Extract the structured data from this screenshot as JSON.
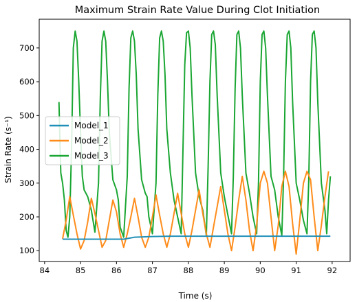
{
  "chart_data": {
    "type": "line",
    "title": "Maximum Strain Rate Value During Clot Initiation",
    "xlabel": "Time (s)",
    "ylabel": "Strain Rate (s⁻¹)",
    "xlim": [
      83.85,
      92.5
    ],
    "ylim": [
      68,
      785
    ],
    "xticks": [
      84,
      85,
      86,
      87,
      88,
      89,
      90,
      91,
      92
    ],
    "yticks": [
      100,
      200,
      300,
      400,
      500,
      600,
      700
    ],
    "grid": false,
    "legend": {
      "placement": "center-left"
    },
    "series": [
      {
        "name": "Model_1",
        "color": "#1f8fb8",
        "x": [
          84.5,
          85.0,
          85.5,
          86.0,
          86.2,
          86.5,
          87.0,
          87.5,
          88.0,
          88.5,
          89.0,
          89.5,
          90.0,
          90.5,
          91.0,
          91.5,
          91.95
        ],
        "y": [
          134,
          134,
          134,
          134,
          134,
          140,
          142,
          143,
          143,
          143,
          143,
          143,
          143,
          143,
          143,
          143,
          143
        ]
      },
      {
        "name": "Model_2",
        "color": "#ff8c1a",
        "x": [
          84.5,
          84.6,
          84.7,
          84.8,
          84.9,
          85.0,
          85.1,
          85.2,
          85.3,
          85.4,
          85.5,
          85.6,
          85.7,
          85.8,
          85.9,
          86.0,
          86.1,
          86.2,
          86.3,
          86.4,
          86.5,
          86.6,
          86.7,
          86.8,
          86.9,
          87.0,
          87.1,
          87.2,
          87.3,
          87.4,
          87.5,
          87.6,
          87.7,
          87.8,
          87.9,
          88.0,
          88.1,
          88.2,
          88.3,
          88.4,
          88.5,
          88.6,
          88.7,
          88.8,
          88.9,
          89.0,
          89.1,
          89.2,
          89.3,
          89.4,
          89.5,
          89.6,
          89.7,
          89.8,
          89.9,
          90.0,
          90.1,
          90.2,
          90.3,
          90.4,
          90.5,
          90.6,
          90.7,
          90.8,
          90.9,
          91.0,
          91.1,
          91.2,
          91.3,
          91.4,
          91.5,
          91.6,
          91.7,
          91.8,
          91.9
        ],
        "y": [
          135,
          190,
          260,
          205,
          150,
          105,
          130,
          185,
          255,
          210,
          160,
          110,
          130,
          190,
          250,
          215,
          150,
          110,
          150,
          200,
          255,
          200,
          140,
          110,
          140,
          200,
          265,
          205,
          150,
          110,
          150,
          210,
          270,
          210,
          150,
          110,
          160,
          220,
          280,
          210,
          150,
          110,
          170,
          230,
          290,
          220,
          150,
          100,
          170,
          250,
          320,
          250,
          160,
          100,
          175,
          300,
          335,
          300,
          200,
          100,
          175,
          290,
          335,
          290,
          180,
          90,
          190,
          300,
          335,
          310,
          200,
          100,
          175,
          260,
          335
        ]
      },
      {
        "name": "Model_3",
        "color": "#1aa632",
        "x": [
          84.4,
          84.45,
          84.5,
          84.55,
          84.6,
          84.65,
          84.7,
          84.75,
          84.8,
          84.85,
          84.9,
          84.95,
          85.0,
          85.05,
          85.1,
          85.2,
          85.3,
          85.4,
          85.5,
          85.55,
          85.6,
          85.65,
          85.7,
          85.75,
          85.8,
          85.9,
          86.0,
          86.05,
          86.1,
          86.2,
          86.3,
          86.35,
          86.4,
          86.45,
          86.5,
          86.55,
          86.6,
          86.7,
          86.8,
          86.85,
          86.9,
          87.0,
          87.1,
          87.15,
          87.2,
          87.25,
          87.3,
          87.35,
          87.4,
          87.5,
          87.6,
          87.7,
          87.8,
          87.85,
          87.9,
          87.95,
          88.0,
          88.05,
          88.1,
          88.2,
          88.3,
          88.4,
          88.5,
          88.55,
          88.6,
          88.65,
          88.7,
          88.75,
          88.8,
          88.9,
          89.0,
          89.1,
          89.2,
          89.25,
          89.3,
          89.35,
          89.4,
          89.45,
          89.5,
          89.6,
          89.7,
          89.8,
          89.9,
          89.95,
          90.0,
          90.05,
          90.1,
          90.15,
          90.2,
          90.3,
          90.4,
          90.5,
          90.6,
          90.65,
          90.7,
          90.75,
          90.8,
          90.85,
          90.9,
          91.0,
          91.1,
          91.2,
          91.3,
          91.35,
          91.4,
          91.45,
          91.5,
          91.55,
          91.6,
          91.7,
          91.8,
          91.85,
          91.9,
          91.95
        ],
        "y": [
          540,
          330,
          300,
          250,
          160,
          140,
          200,
          400,
          700,
          750,
          720,
          600,
          450,
          320,
          280,
          260,
          220,
          155,
          300,
          550,
          720,
          750,
          720,
          600,
          450,
          310,
          280,
          250,
          170,
          140,
          320,
          580,
          730,
          750,
          720,
          620,
          460,
          310,
          270,
          260,
          200,
          150,
          300,
          560,
          730,
          750,
          720,
          620,
          460,
          330,
          250,
          200,
          150,
          400,
          650,
          745,
          750,
          700,
          560,
          330,
          260,
          220,
          145,
          350,
          600,
          740,
          750,
          710,
          560,
          330,
          260,
          205,
          150,
          320,
          580,
          740,
          750,
          700,
          560,
          330,
          270,
          200,
          150,
          300,
          600,
          740,
          750,
          700,
          560,
          320,
          280,
          200,
          145,
          320,
          600,
          740,
          750,
          700,
          540,
          300,
          250,
          190,
          150,
          310,
          600,
          740,
          750,
          700,
          540,
          300,
          220,
          150,
          250,
          320
        ]
      }
    ]
  }
}
